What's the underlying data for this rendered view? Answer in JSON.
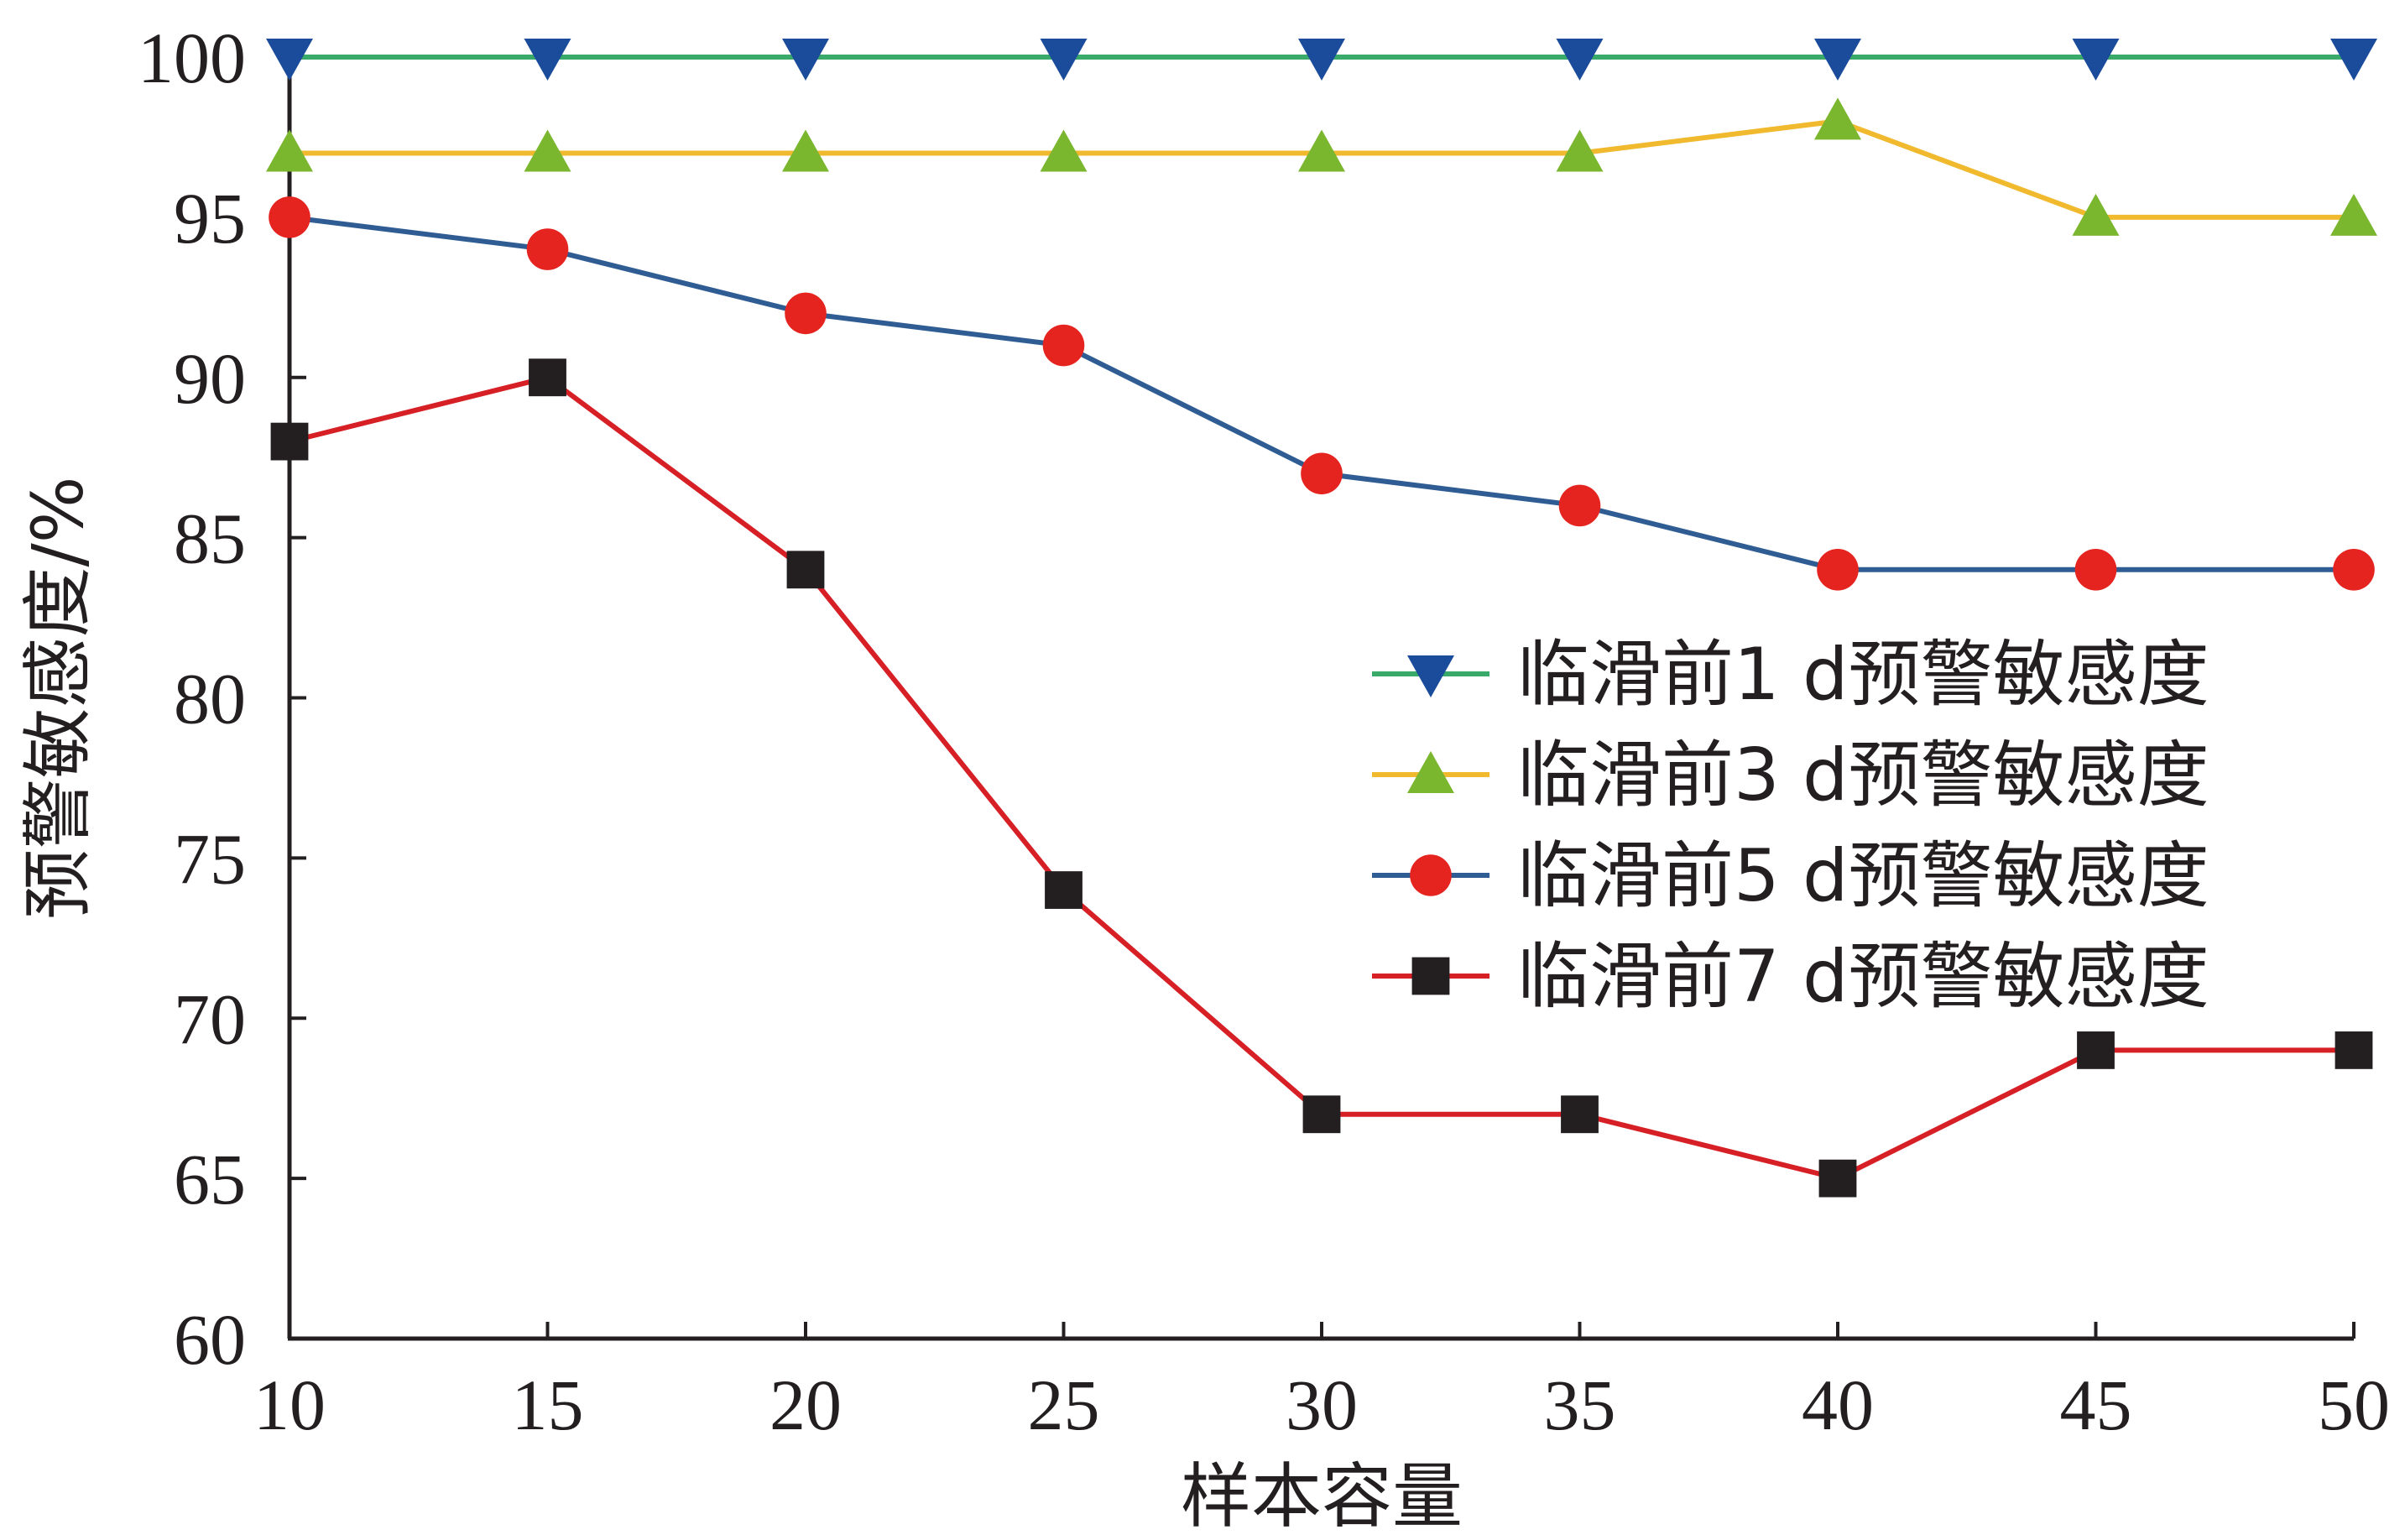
{
  "chart_data": {
    "type": "line",
    "xlabel": "样本容量",
    "ylabel": "预警敏感度/%",
    "xlim": [
      10,
      50
    ],
    "ylim": [
      60,
      100
    ],
    "xticks": [
      10,
      15,
      20,
      25,
      30,
      35,
      40,
      45,
      50
    ],
    "yticks": [
      60,
      65,
      70,
      75,
      80,
      85,
      90,
      95,
      100
    ],
    "x": [
      10,
      15,
      20,
      25,
      30,
      35,
      40,
      45,
      50
    ],
    "grid": false,
    "legend_position": "right",
    "series": [
      {
        "name": "临滑前1 d预警敏感度",
        "values": [
          100,
          100,
          100,
          100,
          100,
          100,
          100,
          100,
          100
        ],
        "line_color": "#3aaa6a",
        "marker": "triangle-down",
        "marker_color": "#1b4c9c"
      },
      {
        "name": "临滑前3 d预警敏感度",
        "values": [
          97,
          97,
          97,
          97,
          97,
          97,
          98,
          95,
          95
        ],
        "line_color": "#f0b92e",
        "marker": "triangle-up",
        "marker_color": "#7ab62e"
      },
      {
        "name": "临滑前5 d预警敏感度",
        "values": [
          95,
          94,
          92,
          91,
          87,
          86,
          84,
          84,
          84
        ],
        "line_color": "#2f5d93",
        "marker": "circle",
        "marker_color": "#e52420"
      },
      {
        "name": "临滑前7 d预警敏感度",
        "values": [
          88,
          90,
          84,
          74,
          67,
          67,
          65,
          69,
          69
        ],
        "line_color": "#d71f26",
        "marker": "square",
        "marker_color": "#231f20"
      }
    ]
  }
}
